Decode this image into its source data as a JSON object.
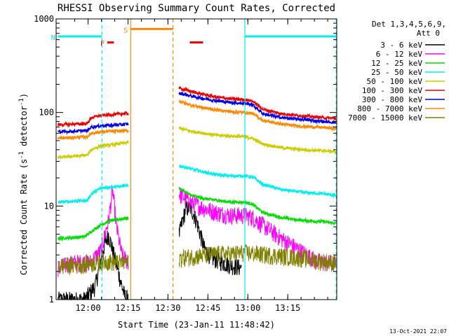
{
  "chart_data": {
    "type": "line",
    "title": "RHESSI Observing Summary Count Rates, Corrected",
    "xlabel": "Start Time (23-Jan-11 11:48:42)",
    "ylabel_main": "Corrected Count Rate (s",
    "ylabel_sup1": "-1",
    "ylabel_mid": " detector",
    "ylabel_sup2": "-1",
    "ylabel_end": ")",
    "yscale": "log",
    "ylim": [
      1,
      1000
    ],
    "xlim_minutes": [
      -0.7,
      104.7
    ],
    "x_unit": "minutes after 11:48:42",
    "x_ticks": [
      {
        "label": "12:00",
        "minute": 11.3
      },
      {
        "label": "12:15",
        "minute": 26.3
      },
      {
        "label": "12:30",
        "minute": 41.3
      },
      {
        "label": "12:45",
        "minute": 56.3
      },
      {
        "label": "13:00",
        "minute": 71.3
      },
      {
        "label": "13:15",
        "minute": 86.3
      }
    ],
    "y_ticks": [
      {
        "label": "1",
        "value": 1
      },
      {
        "label": "10",
        "value": 10
      },
      {
        "label": "100",
        "value": 100
      },
      {
        "label": "1000",
        "value": 1000
      }
    ],
    "legend": {
      "placement": "right",
      "header1": "Det 1,3,4,5,6,9,",
      "header2": "Att 0",
      "entries": [
        {
          "label": "3 - 6 keV",
          "color": "#000000"
        },
        {
          "label": "6 - 12 keV",
          "color": "#ff00ff"
        },
        {
          "label": "12 - 25 keV",
          "color": "#00dd00"
        },
        {
          "label": "25 - 50 keV",
          "color": "#00eeee"
        },
        {
          "label": "50 - 100 keV",
          "color": "#cccc00"
        },
        {
          "label": "100 - 300 keV",
          "color": "#ee0000"
        },
        {
          "label": "300 - 800 keV",
          "color": "#0000ee"
        },
        {
          "label": "800 - 7000 keV",
          "color": "#ff8800"
        },
        {
          "label": "7000 - 15000 keV",
          "color": "#808000"
        }
      ]
    },
    "flags": [
      {
        "label": "N",
        "color": "#00eeee",
        "start": 0,
        "end": 16.5,
        "level": 650
      },
      {
        "label": "",
        "color": "#00eeee",
        "start": 70.2,
        "end": 104.5,
        "level": 650
      },
      {
        "label": "S",
        "color": "#ff8800",
        "start": 27.3,
        "end": 43.2,
        "level": 780
      },
      {
        "label": "F",
        "color": "#ee0000",
        "start": 18.5,
        "end": 21.0,
        "level": 560
      },
      {
        "label": "",
        "color": "#ee0000",
        "start": 49.5,
        "end": 54.5,
        "level": 560
      }
    ],
    "markers": [
      {
        "type": "dashed",
        "color": "#00eeee",
        "minute": 16.5
      },
      {
        "type": "solid",
        "color": "#00eeee",
        "minute": 70.2
      },
      {
        "type": "dashed",
        "color": "#00eeee",
        "minute": 104.5
      },
      {
        "type": "solid",
        "color": "#ff8800",
        "minute": 27.3
      },
      {
        "type": "dashed",
        "color": "#ff8800",
        "minute": 43.2
      }
    ],
    "series": [
      {
        "color": "#000000",
        "segments": [
          {
            "x": [
              0,
              10,
              14,
              17,
              19,
              21,
              23,
              25,
              26.5
            ],
            "y": [
              1,
              1,
              1.4,
              3.5,
              5,
              3,
              1.8,
              1.1,
              1
            ]
          },
          {
            "x": [
              45.5,
              48,
              50,
              52,
              55,
              58,
              62,
              66,
              69
            ],
            "y": [
              5,
              9.5,
              9.5,
              7,
              3.5,
              2.8,
              2.5,
              2.3,
              2.2
            ]
          }
        ]
      },
      {
        "color": "#ff00ff",
        "segments": [
          {
            "x": [
              0,
              6,
              12,
              16,
              19,
              20.5,
              22,
              24,
              26.5
            ],
            "y": [
              2.2,
              2.5,
              2.5,
              3.3,
              7,
              15,
              6,
              3,
              2.5
            ]
          },
          {
            "x": [
              45.5,
              50,
              55,
              60,
              65,
              70,
              73,
              78,
              84,
              90,
              97,
              104.5
            ],
            "y": [
              13.5,
              11,
              9.5,
              8.5,
              8,
              8,
              7.6,
              6,
              4.5,
              3.5,
              2.6,
              2.4
            ]
          }
        ]
      },
      {
        "color": "#00dd00",
        "segments": [
          {
            "x": [
              0,
              10,
              12,
              16,
              20,
              26.5
            ],
            "y": [
              4.5,
              4.7,
              5.2,
              6.3,
              7,
              7.5
            ]
          },
          {
            "x": [
              45.5,
              50,
              55,
              60,
              65,
              70,
              73,
              77,
              84,
              92,
              100,
              104.5
            ],
            "y": [
              15.5,
              13,
              12,
              11.5,
              11,
              11,
              10.5,
              8.5,
              7.5,
              7,
              6.8,
              6.5
            ]
          }
        ]
      },
      {
        "color": "#00eeee",
        "segments": [
          {
            "x": [
              0,
              11,
              12.5,
              16,
              20,
              26.5
            ],
            "y": [
              11,
              11.5,
              13.5,
              15.5,
              16,
              16.5
            ]
          },
          {
            "x": [
              45.5,
              50,
              55,
              60,
              65,
              70,
              73,
              77,
              84,
              92,
              100,
              104.5
            ],
            "y": [
              27,
              25,
              23,
              21.5,
              21,
              21,
              20.5,
              17,
              15,
              14,
              13.5,
              13
            ]
          }
        ]
      },
      {
        "color": "#cccc00",
        "segments": [
          {
            "x": [
              0,
              11,
              12.5,
              16,
              20,
              26.5
            ],
            "y": [
              33,
              35,
              40,
              44,
              45,
              48
            ]
          },
          {
            "x": [
              45.5,
              50,
              55,
              60,
              65,
              70,
              73,
              77,
              84,
              92,
              100,
              104.5
            ],
            "y": [
              68,
              63,
              60,
              57,
              56,
              55,
              53,
              46,
              42,
              40,
              39,
              38
            ]
          }
        ]
      },
      {
        "color": "#ee0000",
        "segments": [
          {
            "x": [
              0,
              11,
              12.5,
              16,
              20,
              26.5
            ],
            "y": [
              74,
              76,
              88,
              93,
              95,
              98
            ]
          },
          {
            "x": [
              45.5,
              50,
              55,
              60,
              65,
              70,
              73,
              77,
              84,
              92,
              100,
              104.5
            ],
            "y": [
              182,
              168,
              155,
              145,
              140,
              137,
              133,
              108,
              97,
              92,
              88,
              86
            ]
          }
        ]
      },
      {
        "color": "#0000ee",
        "segments": [
          {
            "x": [
              0,
              11,
              12.5,
              16,
              20,
              26.5
            ],
            "y": [
              62,
              64,
              70,
              72,
              73,
              75
            ]
          },
          {
            "x": [
              45.5,
              50,
              55,
              60,
              65,
              70,
              73,
              77,
              84,
              92,
              100,
              104.5
            ],
            "y": [
              160,
              150,
              140,
              133,
              128,
              125,
              122,
              97,
              88,
              84,
              80,
              78
            ]
          }
        ]
      },
      {
        "color": "#ff8800",
        "segments": [
          {
            "x": [
              0,
              11,
              12.5,
              16,
              20,
              26.5
            ],
            "y": [
              53,
              55,
              60,
              62,
              63,
              64
            ]
          },
          {
            "x": [
              45.5,
              50,
              55,
              60,
              65,
              70,
              73,
              77,
              84,
              92,
              100,
              104.5
            ],
            "y": [
              132,
              120,
              112,
              106,
              102,
              100,
              98,
              82,
              75,
              71,
              69,
              67
            ]
          }
        ]
      },
      {
        "color": "#808000",
        "segments": [
          {
            "x": [
              0,
              10,
              14,
              18,
              22,
              26.5
            ],
            "y": [
              2.3,
              2.4,
              2.5,
              2.6,
              2.5,
              2.5
            ]
          },
          {
            "x": [
              45.5,
              50,
              55,
              60,
              65,
              70,
              75,
              80,
              86,
              92,
              98,
              104.5
            ],
            "y": [
              2.8,
              2.9,
              3,
              3.1,
              3.1,
              3.2,
              3.1,
              3,
              2.9,
              2.8,
              2.6,
              2.5
            ]
          }
        ]
      }
    ],
    "footer": "13-Oct-2021 22:07"
  }
}
